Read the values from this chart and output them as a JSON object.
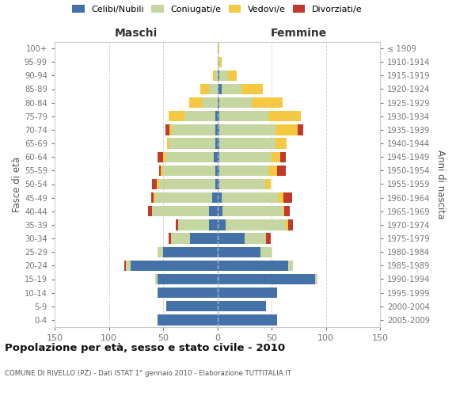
{
  "age_groups": [
    "0-4",
    "5-9",
    "10-14",
    "15-19",
    "20-24",
    "25-29",
    "30-34",
    "35-39",
    "40-44",
    "45-49",
    "50-54",
    "55-59",
    "60-64",
    "65-69",
    "70-74",
    "75-79",
    "80-84",
    "85-89",
    "90-94",
    "95-99",
    "100+"
  ],
  "birth_years": [
    "2005-2009",
    "2000-2004",
    "1995-1999",
    "1990-1994",
    "1985-1989",
    "1980-1984",
    "1975-1979",
    "1970-1974",
    "1965-1969",
    "1960-1964",
    "1955-1959",
    "1950-1954",
    "1945-1949",
    "1940-1944",
    "1935-1939",
    "1930-1934",
    "1925-1929",
    "1920-1924",
    "1915-1919",
    "1910-1914",
    "≤ 1909"
  ],
  "maschi": {
    "celibi": [
      55,
      47,
      55,
      55,
      80,
      50,
      25,
      8,
      8,
      5,
      2,
      2,
      3,
      2,
      2,
      2,
      0,
      0,
      0,
      0,
      0
    ],
    "coniugati": [
      0,
      0,
      0,
      2,
      4,
      5,
      18,
      28,
      52,
      52,
      52,
      48,
      45,
      42,
      40,
      28,
      14,
      8,
      2,
      0,
      0
    ],
    "vedovi": [
      0,
      0,
      0,
      0,
      0,
      0,
      0,
      0,
      0,
      2,
      2,
      2,
      2,
      2,
      2,
      15,
      12,
      8,
      2,
      0,
      0
    ],
    "divorziati": [
      0,
      0,
      0,
      0,
      2,
      0,
      2,
      2,
      4,
      2,
      4,
      2,
      5,
      0,
      4,
      0,
      0,
      0,
      0,
      0,
      0
    ]
  },
  "femmine": {
    "nubili": [
      55,
      45,
      55,
      90,
      65,
      40,
      25,
      8,
      5,
      4,
      2,
      2,
      2,
      2,
      2,
      2,
      2,
      4,
      2,
      0,
      0
    ],
    "coniugate": [
      0,
      0,
      0,
      2,
      5,
      10,
      20,
      55,
      55,
      52,
      42,
      45,
      48,
      52,
      52,
      45,
      30,
      18,
      8,
      2,
      0
    ],
    "vedove": [
      0,
      0,
      0,
      0,
      0,
      0,
      0,
      2,
      2,
      5,
      5,
      8,
      8,
      10,
      20,
      30,
      28,
      20,
      8,
      2,
      2
    ],
    "divorziate": [
      0,
      0,
      0,
      0,
      0,
      0,
      4,
      5,
      5,
      8,
      0,
      8,
      5,
      0,
      5,
      0,
      0,
      0,
      0,
      0,
      0
    ]
  },
  "colors": {
    "celibi": "#4472a8",
    "coniugati": "#c5d6a0",
    "vedovi": "#f5c842",
    "divorziati": "#c0392b"
  },
  "xlim": 150,
  "title": "Popolazione per età, sesso e stato civile - 2010",
  "subtitle": "COMUNE DI RIVELLO (PZ) - Dati ISTAT 1° gennaio 2010 - Elaborazione TUTTITALIA.IT",
  "ylabel_left": "Fasce di età",
  "ylabel_right": "Anni di nascita",
  "xlabel_left": "Maschi",
  "xlabel_right": "Femmine",
  "legend_labels": [
    "Celibi/Nubili",
    "Coniugati/e",
    "Vedovi/e",
    "Divorziati/e"
  ]
}
